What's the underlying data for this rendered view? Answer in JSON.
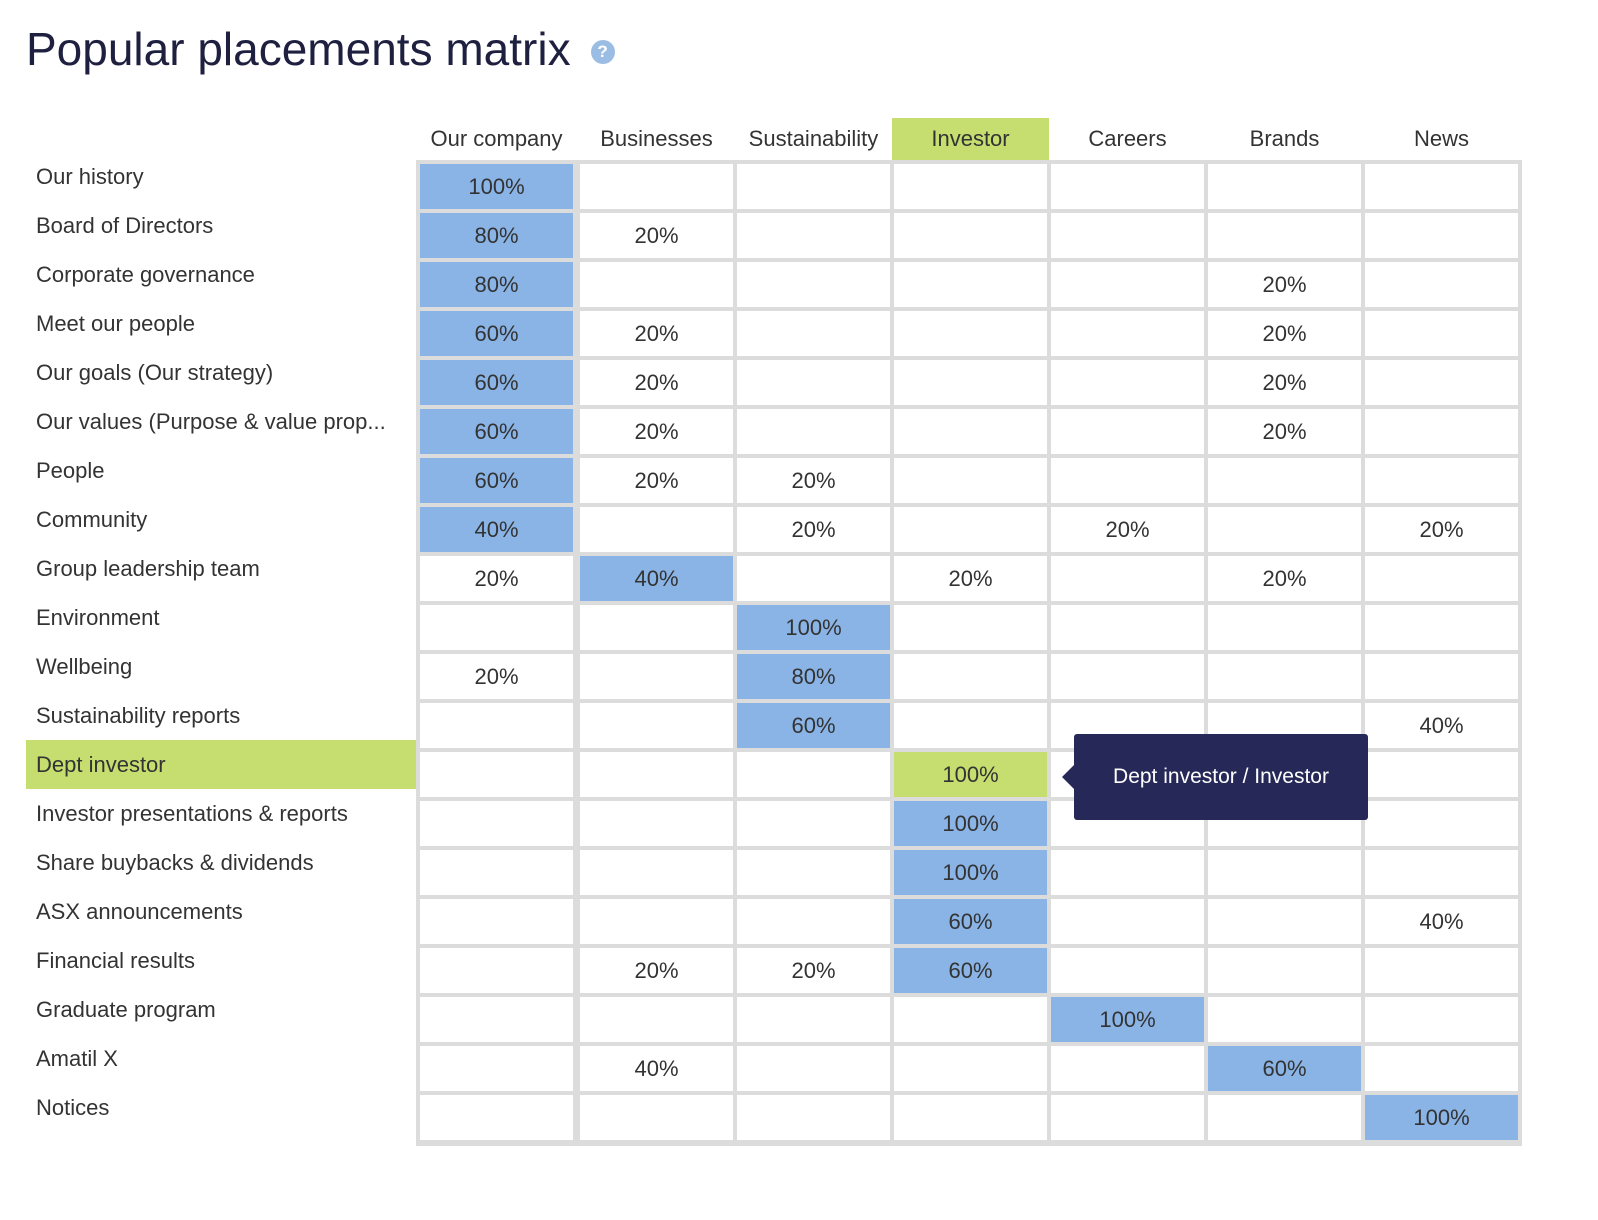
{
  "title": "Popular placements matrix",
  "help_icon": "question-circle-icon",
  "columns": [
    "Our company",
    "Businesses",
    "Sustainability",
    "Investor",
    "Careers",
    "Brands",
    "News"
  ],
  "highlight_column": 3,
  "highlight_row": 12,
  "colors": {
    "highlight": "#c5de6f",
    "cell_fill": "#8ab4e6",
    "tooltip": "#262958",
    "grid": "#dcdcdc"
  },
  "rows": [
    {
      "label": "Our history",
      "cells": [
        "100%",
        "",
        "",
        "",
        "",
        "",
        ""
      ],
      "filled": 0
    },
    {
      "label": "Board of Directors",
      "cells": [
        "80%",
        "20%",
        "",
        "",
        "",
        "",
        ""
      ],
      "filled": 0
    },
    {
      "label": "Corporate governance",
      "cells": [
        "80%",
        "",
        "",
        "",
        "",
        "20%",
        ""
      ],
      "filled": 0
    },
    {
      "label": "Meet our people",
      "cells": [
        "60%",
        "20%",
        "",
        "",
        "",
        "20%",
        ""
      ],
      "filled": 0
    },
    {
      "label": "Our goals (Our strategy)",
      "cells": [
        "60%",
        "20%",
        "",
        "",
        "",
        "20%",
        ""
      ],
      "filled": 0
    },
    {
      "label": "Our values (Purpose & value prop...",
      "cells": [
        "60%",
        "20%",
        "",
        "",
        "",
        "20%",
        ""
      ],
      "filled": 0
    },
    {
      "label": "People",
      "cells": [
        "60%",
        "20%",
        "20%",
        "",
        "",
        "",
        ""
      ],
      "filled": 0
    },
    {
      "label": "Community",
      "cells": [
        "40%",
        "",
        "20%",
        "",
        "20%",
        "",
        "20%"
      ],
      "filled": 0
    },
    {
      "label": "Group leadership team",
      "cells": [
        "20%",
        "40%",
        "",
        "20%",
        "",
        "20%",
        ""
      ],
      "filled": 1
    },
    {
      "label": "Environment",
      "cells": [
        "",
        "",
        "100%",
        "",
        "",
        "",
        ""
      ],
      "filled": 2
    },
    {
      "label": "Wellbeing",
      "cells": [
        "20%",
        "",
        "80%",
        "",
        "",
        "",
        ""
      ],
      "filled": 2
    },
    {
      "label": "Sustainability reports",
      "cells": [
        "",
        "",
        "60%",
        "",
        "",
        "",
        "40%"
      ],
      "filled": 2
    },
    {
      "label": "Dept investor",
      "cells": [
        "",
        "",
        "",
        "100%",
        "",
        "",
        ""
      ],
      "filled": 3
    },
    {
      "label": "Investor presentations & reports",
      "cells": [
        "",
        "",
        "",
        "100%",
        "",
        "",
        ""
      ],
      "filled": 3
    },
    {
      "label": "Share buybacks & dividends",
      "cells": [
        "",
        "",
        "",
        "100%",
        "",
        "",
        ""
      ],
      "filled": 3
    },
    {
      "label": "ASX announcements",
      "cells": [
        "",
        "",
        "",
        "60%",
        "",
        "",
        "40%"
      ],
      "filled": 3
    },
    {
      "label": "Financial results",
      "cells": [
        "",
        "20%",
        "20%",
        "60%",
        "",
        "",
        ""
      ],
      "filled": 3
    },
    {
      "label": "Graduate program",
      "cells": [
        "",
        "",
        "",
        "",
        "100%",
        "",
        ""
      ],
      "filled": 4
    },
    {
      "label": "Amatil X",
      "cells": [
        "",
        "40%",
        "",
        "",
        "",
        "60%",
        ""
      ],
      "filled": 5
    },
    {
      "label": "Notices",
      "cells": [
        "",
        "",
        "",
        "",
        "",
        "",
        "100%"
      ],
      "filled": 6
    }
  ],
  "tooltip": {
    "text": "Dept investor / Investor"
  }
}
